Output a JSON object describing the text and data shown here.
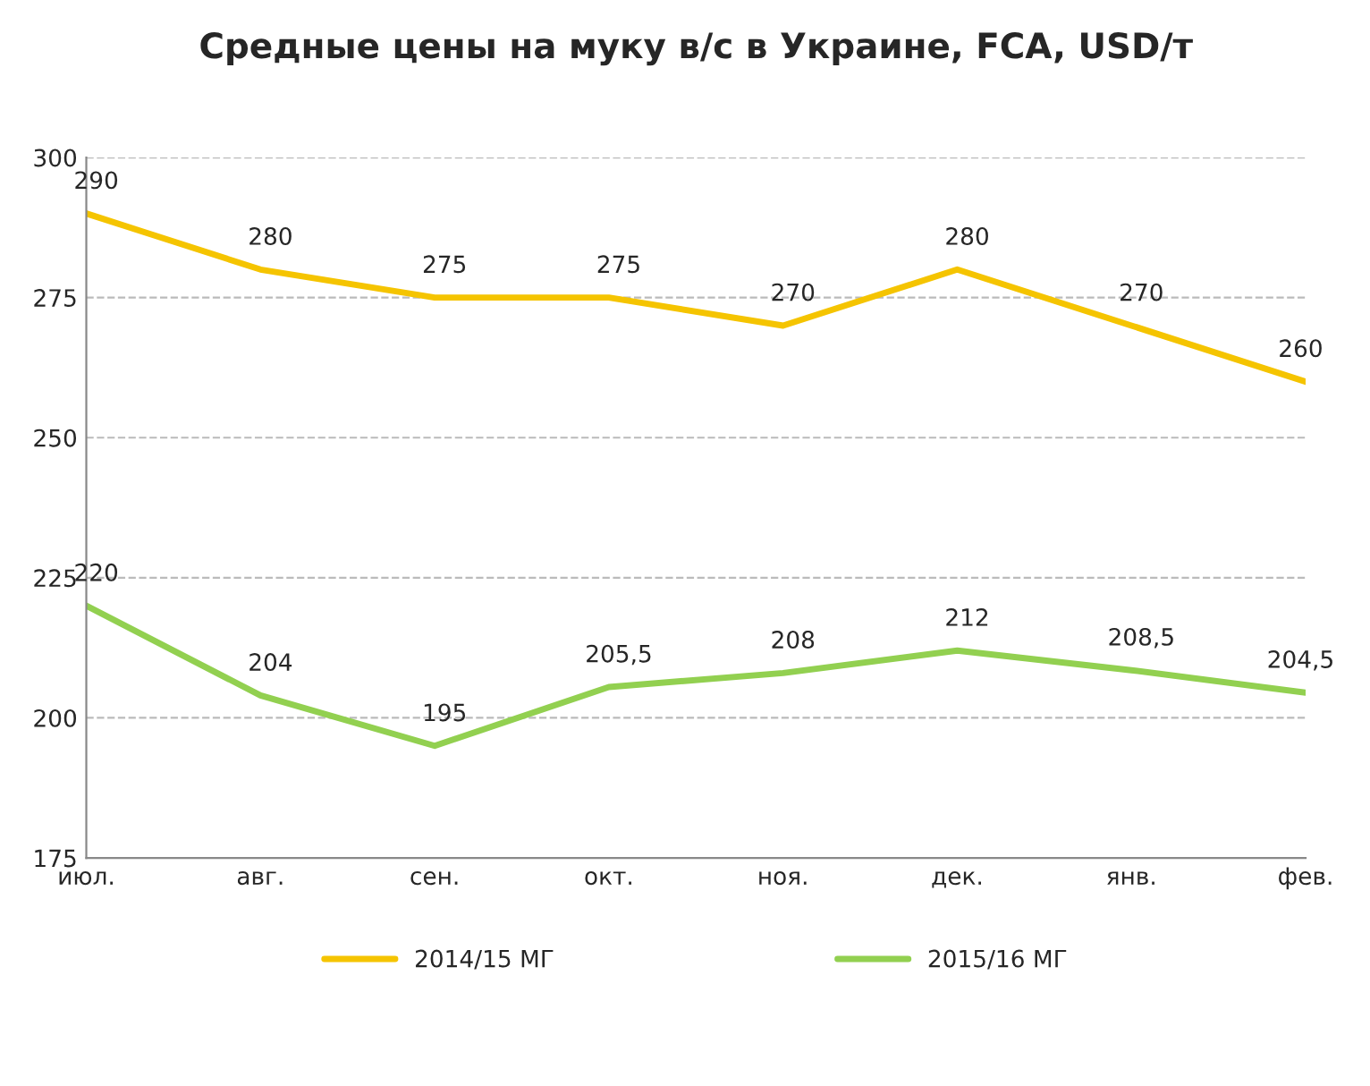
{
  "chart_data": {
    "type": "line",
    "title": "Средные цены на муку в/с в Украине, FCA, USD/т",
    "categories": [
      "июл.",
      "авг.",
      "сен.",
      "окт.",
      "ноя.",
      "дек.",
      "янв.",
      "фев."
    ],
    "series": [
      {
        "name": "2014/15 МГ",
        "color": "#f5c400",
        "values": [
          290,
          280,
          275,
          275,
          270,
          280,
          270,
          260
        ],
        "value_labels": [
          "290",
          "280",
          "275",
          "275",
          "270",
          "280",
          "270",
          "260"
        ]
      },
      {
        "name": "2015/16 МГ",
        "color": "#92d050",
        "values": [
          220,
          204,
          195,
          205.5,
          208,
          212,
          208.5,
          204.5
        ],
        "value_labels": [
          "220",
          "204",
          "195",
          "205,5",
          "208",
          "212",
          "208,5",
          "204,5"
        ]
      }
    ],
    "ylim": [
      175,
      300
    ],
    "yticks": [
      175,
      200,
      225,
      250,
      275,
      300
    ],
    "grid": "y",
    "legend": "bottom",
    "marker": "none",
    "line_style": "solid"
  }
}
